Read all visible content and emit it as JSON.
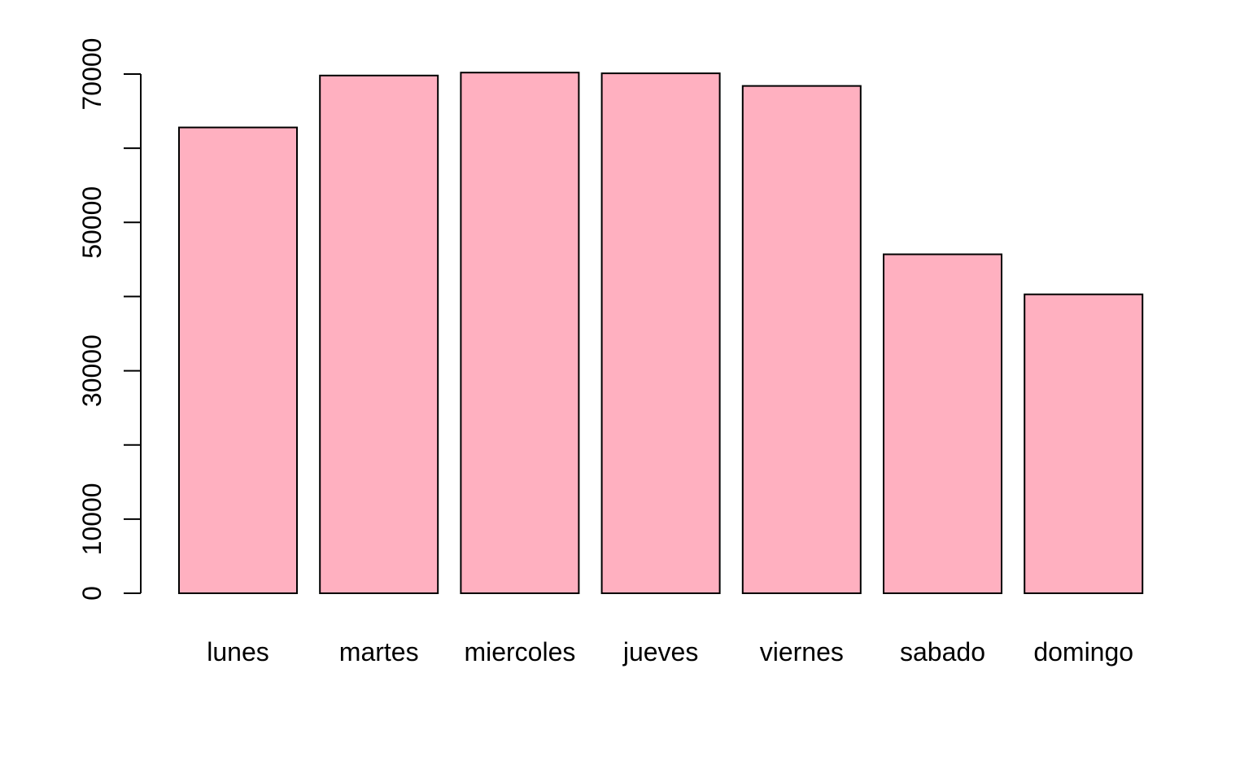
{
  "chart_data": {
    "type": "bar",
    "title": "",
    "xlabel": "",
    "ylabel": "",
    "categories": [
      "lunes",
      "martes",
      "miercoles",
      "jueves",
      "viernes",
      "sabado",
      "domingo"
    ],
    "values": [
      62800,
      69800,
      70200,
      70100,
      68400,
      45700,
      40300
    ],
    "ylim": [
      0,
      70000
    ],
    "y_ticks": [
      0,
      10000,
      20000,
      30000,
      40000,
      50000,
      60000,
      70000
    ],
    "y_tick_labels": [
      "0",
      "10000",
      "",
      "30000",
      "",
      "50000",
      "",
      "70000"
    ],
    "grid": false,
    "legend": "none",
    "colors": {
      "bar_fill": "#ffb0c0",
      "bar_stroke": "#000000",
      "axis": "#000000",
      "background": "#ffffff"
    }
  }
}
